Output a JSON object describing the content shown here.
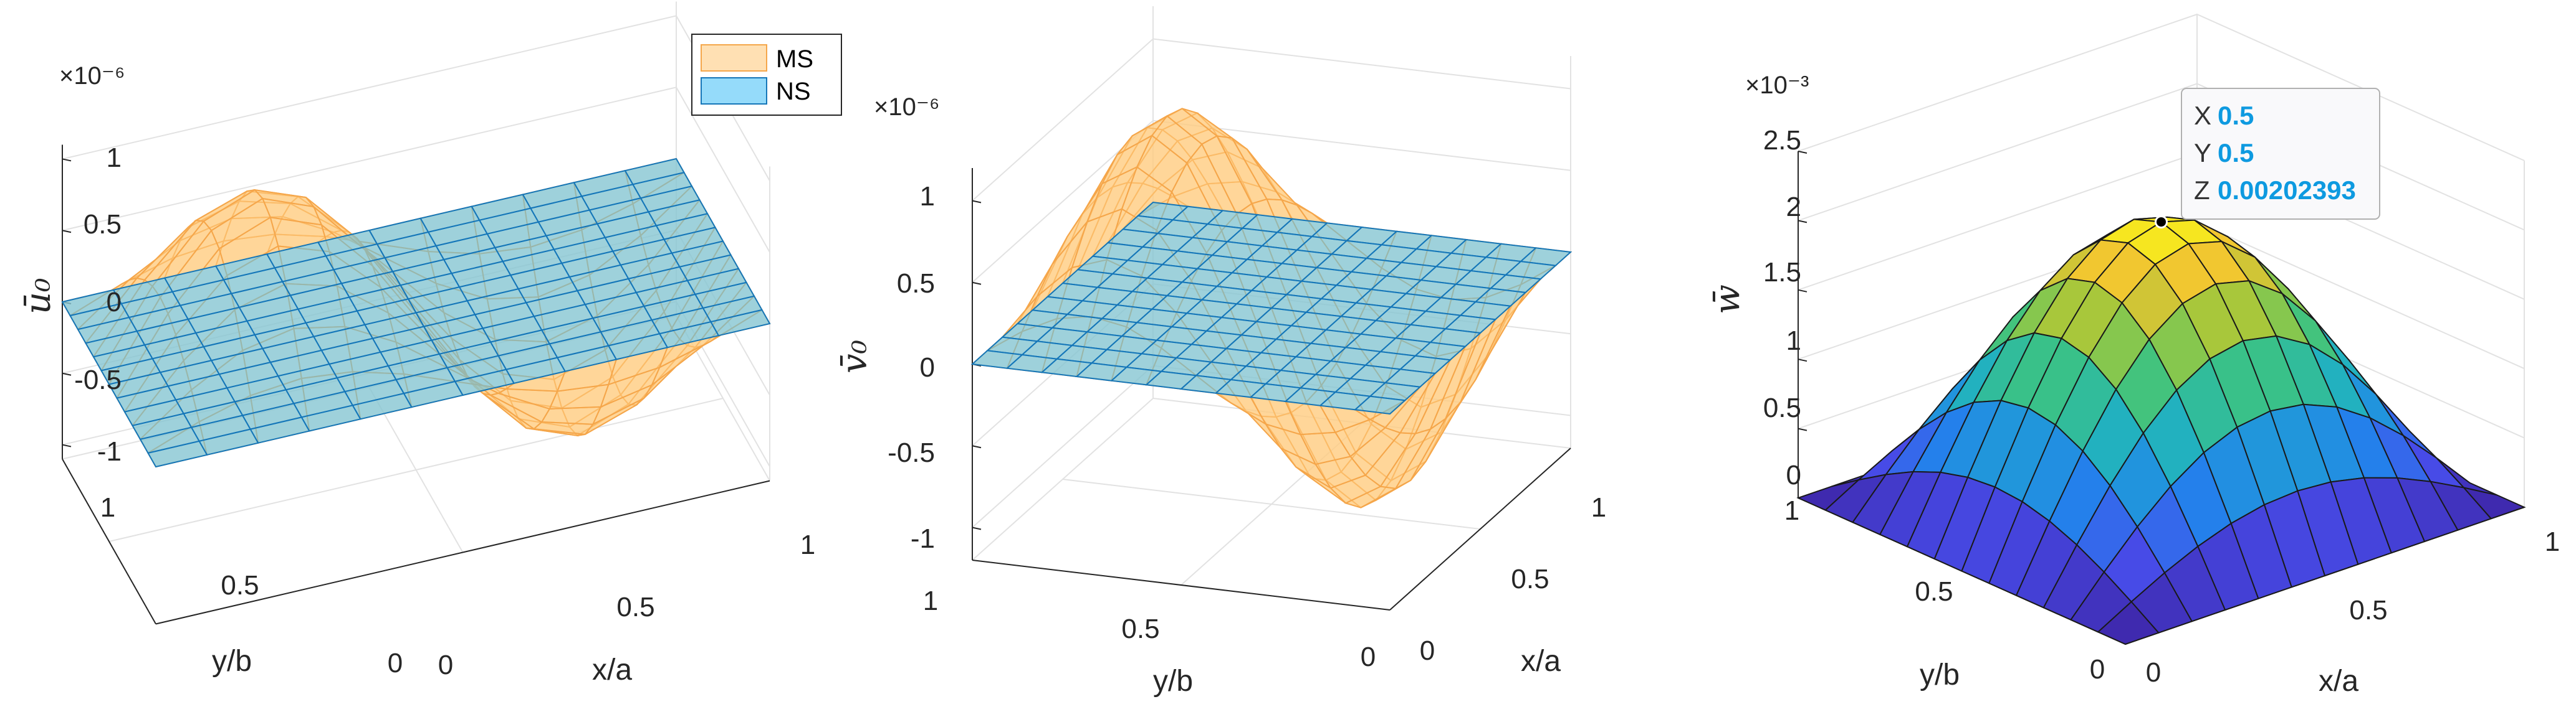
{
  "colors": {
    "ms_face": "#ffcc80",
    "ms_edge": "#f5a64a",
    "ns_face": "#4fc3f7",
    "ns_edge": "#1576b8",
    "grid": "#e2e2e2",
    "axis": "#262626",
    "datatip_value": "#0e9ae0"
  },
  "chart_data": [
    {
      "type": "surface",
      "panel": "u0",
      "zlabel": "ū₀",
      "xlabel": "x/a",
      "ylabel": "y/b",
      "exponent": "×10⁻⁶",
      "xlim": [
        0,
        1
      ],
      "ylim": [
        0,
        1
      ],
      "zlim": [
        -1.1,
        1.1
      ],
      "xticks": [
        "0",
        "0.5",
        "1"
      ],
      "yticks": [
        "0",
        "0.5",
        "1"
      ],
      "zticks": [
        "-1",
        "-0.5",
        "0",
        "0.5",
        "1"
      ],
      "zticks_values": [
        -1,
        -0.5,
        0,
        0.5,
        1
      ],
      "legend": {
        "location": "top-right",
        "entries": [
          "MS",
          "NS"
        ]
      },
      "series": [
        {
          "name": "MS",
          "function": "amp * sin(2*pi*x) * sin(pi*y)",
          "amplitude": 1.05
        },
        {
          "name": "NS",
          "function": "0",
          "amplitude": 0
        }
      ]
    },
    {
      "type": "surface",
      "panel": "v0",
      "zlabel": "v̄₀",
      "xlabel": "x/a",
      "ylabel": "y/b",
      "exponent": "×10⁻⁶",
      "xlim": [
        0,
        1
      ],
      "ylim": [
        0,
        1
      ],
      "zlim": [
        -1.2,
        1.2
      ],
      "xticks": [
        "0",
        "0.5",
        "1"
      ],
      "yticks": [
        "0",
        "0.5",
        "1"
      ],
      "zticks": [
        "-1",
        "-0.5",
        "0",
        "0.5",
        "1"
      ],
      "zticks_values": [
        -1,
        -0.5,
        0,
        0.5,
        1
      ],
      "series": [
        {
          "name": "MS",
          "function": "amp * sin(pi*x) * sin(2*pi*y)",
          "amplitude": -1.1
        },
        {
          "name": "NS",
          "function": "0",
          "amplitude": 0
        }
      ]
    },
    {
      "type": "surface",
      "panel": "w",
      "zlabel": "w̄",
      "xlabel": "x/a",
      "ylabel": "y/b",
      "exponent": "×10⁻³",
      "xlim": [
        0,
        1
      ],
      "ylim": [
        0,
        1
      ],
      "zlim": [
        0,
        2.5
      ],
      "xticks": [
        "0",
        "0.5",
        "1"
      ],
      "yticks": [
        "0",
        "0.5",
        "1"
      ],
      "zticks": [
        "0",
        "0.5",
        "1",
        "1.5",
        "2",
        "2.5"
      ],
      "zticks_values": [
        0,
        0.5,
        1,
        1.5,
        2,
        2.5
      ],
      "colormap": "parula",
      "series": [
        {
          "name": "w",
          "function": "amp * sin(pi*x) * sin(pi*y)",
          "amplitude": 2.02393
        }
      ],
      "datatip": {
        "x": "0.5",
        "y": "0.5",
        "z": "0.00202393",
        "x_label": "X",
        "y_label": "Y",
        "z_label": "Z"
      }
    }
  ]
}
